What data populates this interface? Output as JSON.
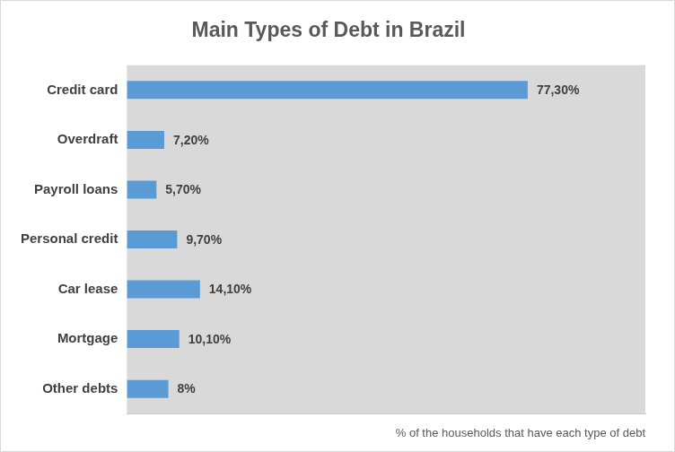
{
  "chart_data": {
    "type": "bar",
    "title": "Main Types of Debt in Brazil",
    "orientation": "horizontal",
    "categories": [
      "Credit card",
      "Overdraft",
      "Payroll loans",
      "Personal credit",
      "Car lease",
      "Mortgage",
      "Other debts"
    ],
    "values": [
      77.3,
      7.2,
      5.7,
      9.7,
      14.1,
      10.1,
      8
    ],
    "value_labels": [
      "77,30%",
      "7,20%",
      "5,70%",
      "9,70%",
      "14,10%",
      "10,10%",
      "8%"
    ],
    "data_labels": true,
    "color": "#5b9bd5",
    "x_label": "% of the households that have each type of debt",
    "xlim": [
      0,
      100
    ],
    "xticks": [],
    "grid": false,
    "tick_labels": "y"
  }
}
